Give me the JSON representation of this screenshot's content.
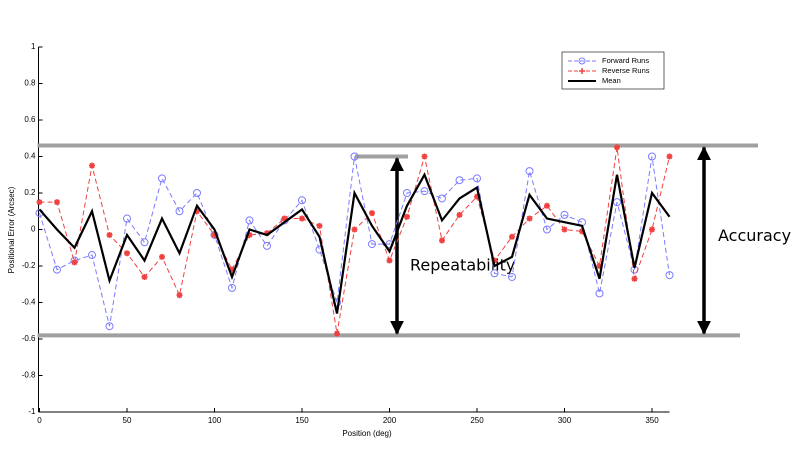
{
  "chart_data": {
    "type": "line",
    "x_label": "Position (deg)",
    "y_label": "Positional Error (Arcsec)",
    "x": [
      0,
      10,
      20,
      30,
      40,
      50,
      60,
      70,
      80,
      90,
      100,
      110,
      120,
      130,
      140,
      150,
      160,
      170,
      180,
      190,
      200,
      210,
      220,
      230,
      240,
      250,
      260,
      270,
      280,
      290,
      300,
      310,
      320,
      330,
      340,
      350,
      360
    ],
    "series": [
      {
        "name": "Forward Runs",
        "color": "#7b7bff",
        "style": "dashed-circle",
        "values": [
          0.09,
          -0.22,
          -0.17,
          -0.14,
          -0.53,
          0.06,
          -0.07,
          0.28,
          0.1,
          0.2,
          -0.03,
          -0.32,
          0.05,
          -0.09,
          0.05,
          0.16,
          -0.11,
          -0.4,
          0.4,
          -0.08,
          -0.08,
          0.2,
          0.21,
          0.17,
          0.27,
          0.28,
          -0.24,
          -0.26,
          0.32,
          0.0,
          0.08,
          0.04,
          -0.35,
          0.15,
          -0.22,
          0.4,
          -0.25
        ]
      },
      {
        "name": "Reverse Runs",
        "color": "#f04040",
        "style": "dashed-star",
        "values": [
          0.15,
          0.15,
          -0.18,
          0.35,
          -0.03,
          -0.13,
          -0.26,
          -0.15,
          -0.36,
          0.1,
          -0.03,
          -0.22,
          -0.03,
          -0.02,
          0.06,
          0.06,
          0.02,
          -0.57,
          0.0,
          0.09,
          -0.17,
          0.07,
          0.4,
          -0.06,
          0.08,
          0.18,
          -0.17,
          -0.04,
          0.06,
          0.13,
          0.0,
          -0.01,
          -0.2,
          0.45,
          -0.27,
          0.0,
          0.4
        ]
      },
      {
        "name": "Mean",
        "color": "#000000",
        "style": "solid",
        "values": [
          0.11,
          0.0,
          -0.1,
          0.1,
          -0.28,
          -0.03,
          -0.17,
          0.06,
          -0.13,
          0.13,
          0.0,
          -0.26,
          0.0,
          -0.03,
          0.04,
          0.11,
          -0.04,
          -0.46,
          0.2,
          0.02,
          -0.12,
          0.13,
          0.3,
          0.05,
          0.17,
          0.23,
          -0.2,
          -0.15,
          0.19,
          0.06,
          0.04,
          0.02,
          -0.27,
          0.3,
          -0.21,
          0.2,
          0.07
        ]
      }
    ],
    "xlim": [
      0,
      360
    ],
    "xticks": [
      0,
      50,
      100,
      150,
      200,
      250,
      300,
      350
    ],
    "ylim": [
      -1,
      1
    ],
    "yticks": [
      -1,
      -0.8,
      -0.6,
      -0.4,
      -0.2,
      0,
      0.2,
      0.4,
      0.6,
      0.8,
      1
    ],
    "legend": "upper right",
    "annotations": [
      {
        "label": "Repeatability",
        "from": 0.4,
        "to": -0.58
      },
      {
        "label": "Accuracy",
        "from": 0.46,
        "to": -0.58
      }
    ]
  }
}
